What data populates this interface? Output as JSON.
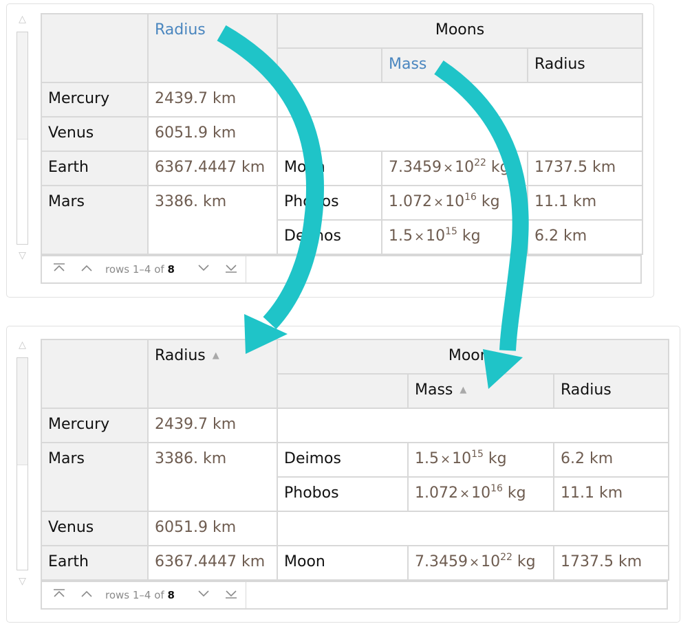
{
  "headers": {
    "radius": "Radius",
    "moons": "Moons",
    "mass": "Mass",
    "moon_radius": "Radius"
  },
  "sort_indicator": "▲",
  "pager": {
    "rows_prefix": "rows 1–4 of",
    "total": "8",
    "first_icon": "first-page-icon",
    "prev_icon": "previous-page-icon",
    "next_icon": "next-page-icon",
    "last_icon": "last-page-icon"
  },
  "top_table": {
    "rows": [
      {
        "planet": "Mercury",
        "radius": "2439.7 km"
      },
      {
        "planet": "Venus",
        "radius": "6051.9 km"
      },
      {
        "planet": "Earth",
        "radius": "6367.4447 km",
        "moon": "Moon",
        "mass_mant": "7.3459",
        "mass_exp": "22",
        "moon_radius": "1737.5 km"
      },
      {
        "planet": "Mars",
        "radius": "3386. km",
        "moon": "Phobos",
        "mass_mant": "1.072",
        "mass_exp": "16",
        "moon_radius": "11.1 km"
      },
      {
        "moon": "Deimos",
        "mass_mant": "1.5",
        "mass_exp": "15",
        "moon_radius": "6.2 km"
      }
    ]
  },
  "bottom_table": {
    "rows": [
      {
        "planet": "Mercury",
        "radius": "2439.7 km"
      },
      {
        "planet": "Mars",
        "radius": "3386. km",
        "moon": "Deimos",
        "mass_mant": "1.5",
        "mass_exp": "15",
        "moon_radius": "6.2 km"
      },
      {
        "moon": "Phobos",
        "mass_mant": "1.072",
        "mass_exp": "16",
        "moon_radius": "11.1 km"
      },
      {
        "planet": "Venus",
        "radius": "6051.9 km"
      },
      {
        "planet": "Earth",
        "radius": "6367.4447 km",
        "moon": "Moon",
        "mass_mant": "7.3459",
        "mass_exp": "22",
        "moon_radius": "1737.5 km"
      }
    ]
  },
  "units": {
    "mass_base": "10",
    "mass_unit": "kg",
    "times": "×"
  },
  "colors": {
    "arrow": "#1fc4c8",
    "sort_link": "#4a86bf",
    "value_text": "#6e5c50"
  }
}
